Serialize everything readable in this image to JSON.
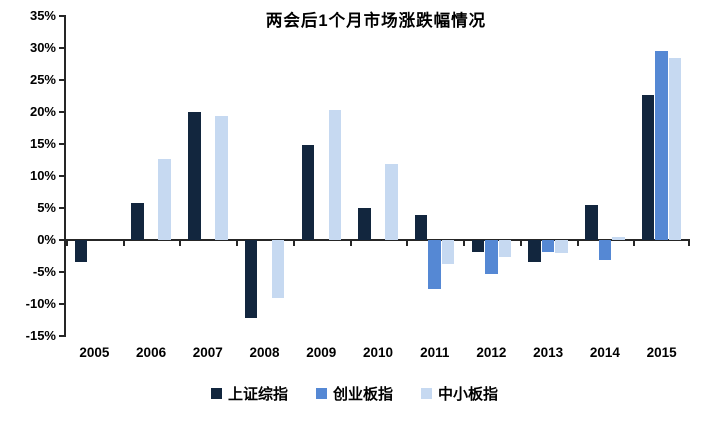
{
  "chart_data": {
    "type": "bar",
    "title": "两会后1个月市场涨跌幅情况",
    "categories": [
      "2005",
      "2006",
      "2007",
      "2008",
      "2009",
      "2010",
      "2011",
      "2012",
      "2013",
      "2014",
      "2015"
    ],
    "series": [
      {
        "id": "shanghai-composite",
        "name": "上证综指",
        "color": "#12263E",
        "values": [
          -3.4,
          5.8,
          20.0,
          -12.2,
          14.8,
          5.0,
          3.9,
          -1.8,
          -3.5,
          5.5,
          22.6
        ]
      },
      {
        "id": "chinext",
        "name": "创业板指",
        "color": "#5588D4",
        "values": [
          null,
          null,
          null,
          null,
          null,
          null,
          -7.7,
          -5.3,
          -1.9,
          -3.2,
          29.6
        ]
      },
      {
        "id": "sme-board",
        "name": "中小板指",
        "color": "#C6D9F1",
        "values": [
          null,
          12.7,
          19.4,
          -9.1,
          20.3,
          11.8,
          -3.7,
          -2.7,
          -2.1,
          0.4,
          28.4
        ]
      }
    ],
    "ylim": [
      -15,
      35
    ],
    "ytick_step": 5,
    "ytick_labels": [
      "35%",
      "30%",
      "25%",
      "20%",
      "15%",
      "10%",
      "5%",
      "0%",
      "-5%",
      "-10%",
      "-15%"
    ],
    "xlabel": "",
    "ylabel": "",
    "grid": false,
    "legend_position": "bottom",
    "axis_color": "#262626"
  }
}
